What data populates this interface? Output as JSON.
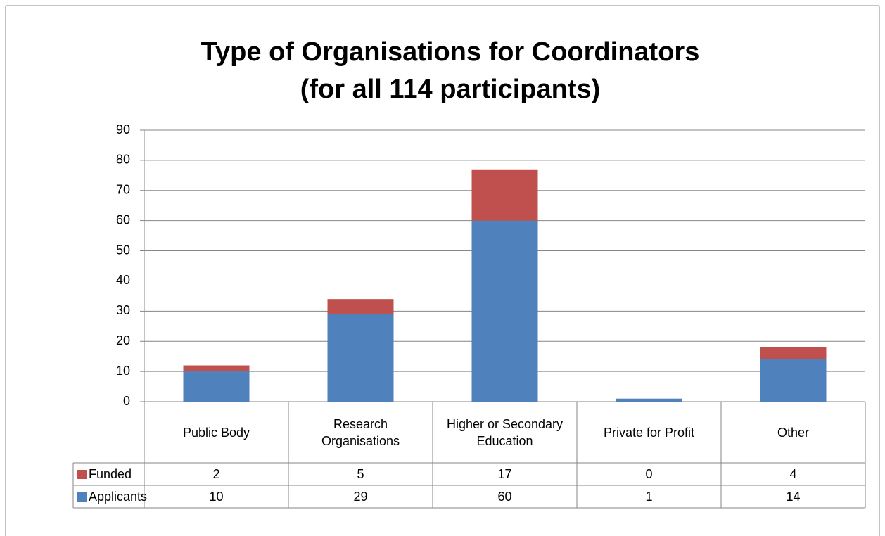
{
  "chart_data": {
    "type": "stacked_bar",
    "title": [
      "Type of Organisations for Coordinators",
      "(for all 114 participants)"
    ],
    "categories": [
      "Public Body",
      "Research Organisations",
      "Higher or Secondary Education",
      "Private for Profit",
      "Other"
    ],
    "series": [
      {
        "name": "Funded",
        "color": "#c0504d",
        "values": [
          2,
          5,
          17,
          0,
          4
        ]
      },
      {
        "name": "Applicants",
        "color": "#4f81bd",
        "values": [
          10,
          29,
          60,
          1,
          14
        ]
      }
    ],
    "ylim": [
      0,
      90
    ],
    "yticks": [
      0,
      10,
      20,
      30,
      40,
      50,
      60,
      70,
      80,
      90
    ],
    "grid": true
  }
}
